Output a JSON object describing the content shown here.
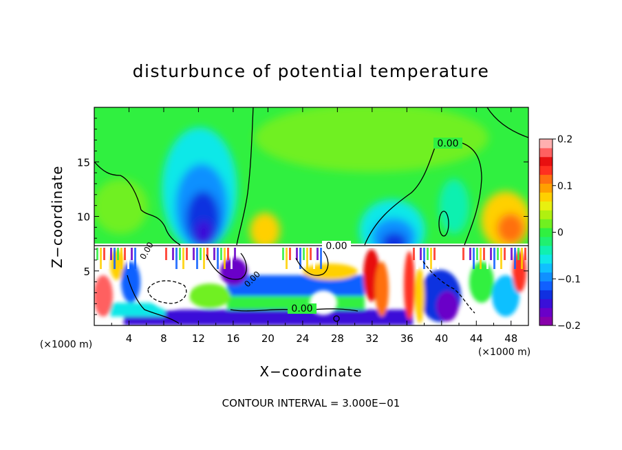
{
  "chart_data": {
    "type": "heatmap",
    "title": "disturbunce of potential temperature",
    "xlabel": "X−coordinate",
    "ylabel": "Z−coordinate",
    "x_unit": "(×1000 m)",
    "y_unit": "(×1000 m)",
    "xlim": [
      0,
      50
    ],
    "ylim": [
      0,
      20
    ],
    "x_ticks": [
      4,
      8,
      12,
      16,
      20,
      24,
      28,
      32,
      36,
      40,
      44,
      48
    ],
    "x_tick_labels": [
      "4",
      "8",
      "12",
      "16",
      "20",
      "24",
      "28",
      "32",
      "36",
      "40",
      "44",
      "48"
    ],
    "y_ticks": [
      5,
      10,
      15
    ],
    "y_tick_labels": [
      "5",
      "10",
      "15"
    ],
    "colorbar": {
      "range": [
        -0.2,
        0.2
      ],
      "ticks": [
        0.2,
        0.1,
        0,
        -0.1,
        -0.2
      ],
      "tick_labels": [
        "0.2",
        "0.1",
        "0",
        "−0.1",
        "−0.2"
      ],
      "colors": [
        "#8800aa",
        "#6a00c8",
        "#3a10d8",
        "#1030e0",
        "#1060ff",
        "#1090ff",
        "#10c0ff",
        "#10e8e8",
        "#10f0b0",
        "#20f070",
        "#30f040",
        "#70f020",
        "#b0f010",
        "#e8f010",
        "#ffd000",
        "#ffa000",
        "#ff7010",
        "#ff3020",
        "#e81010",
        "#ff6060",
        "#ffb0b0"
      ]
    },
    "contour_interval_text": "CONTOUR INTERVAL = 3.000E−01",
    "contour_labels": [
      "0.00",
      "0.00",
      "0.00",
      "0.00",
      "0.00"
    ],
    "features": [
      {
        "kind": "cold_anomaly",
        "x": 12.5,
        "z": 10.5,
        "value": -0.17
      },
      {
        "kind": "cold_anomaly",
        "x": 34,
        "z": 8.5,
        "value": -0.12
      },
      {
        "kind": "warm_anomaly",
        "x": 47,
        "z": 9,
        "value": 0.1
      },
      {
        "kind": "warm_anomaly",
        "x": 20,
        "z": 9.5,
        "value": 0.05
      },
      {
        "kind": "tropopause_layer",
        "z": 7.2
      }
    ]
  }
}
